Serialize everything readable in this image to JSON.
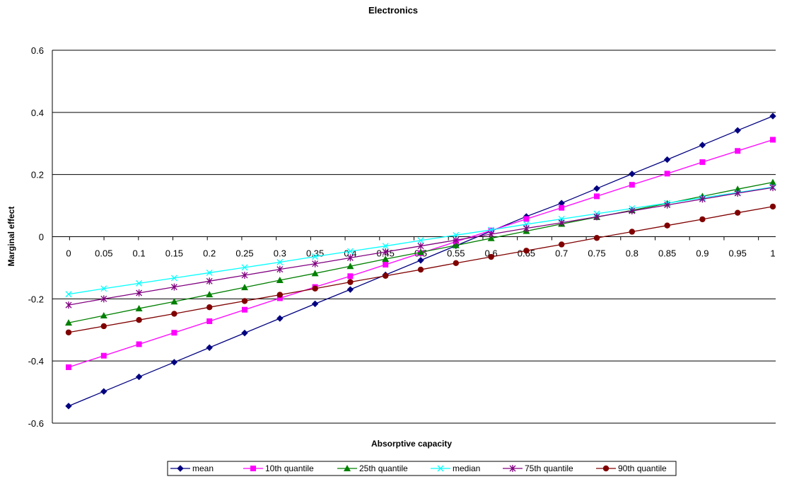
{
  "chart_data": {
    "type": "line",
    "title": "Electronics",
    "xlabel": "Absorptive capacity",
    "ylabel": "Marginal effect",
    "ylim": [
      -0.6,
      0.6
    ],
    "yticks": [
      -0.6,
      -0.4,
      -0.2,
      0,
      0.2,
      0.4,
      0.6
    ],
    "ytick_labels": [
      "-0.6",
      "-0.4",
      "-0.2",
      "0",
      "0.2",
      "0.4",
      "0.6"
    ],
    "grid": true,
    "legend_position": "bottom",
    "categories": [
      "0",
      "0.05",
      "0.1",
      "0.15",
      "0.2",
      "0.25",
      "0.3",
      "0.35",
      "0.4",
      "0.45",
      "0.5",
      "0.55",
      "0.6",
      "0.65",
      "0.7",
      "0.75",
      "0.8",
      "0.85",
      "0.9",
      "0.95",
      "1"
    ],
    "series": [
      {
        "name": "mean",
        "color": "#000080",
        "marker": "diamond",
        "values": [
          -0.545,
          -0.498,
          -0.451,
          -0.404,
          -0.357,
          -0.31,
          -0.263,
          -0.216,
          -0.17,
          -0.123,
          -0.076,
          -0.029,
          0.018,
          0.065,
          0.108,
          0.155,
          0.202,
          0.248,
          0.295,
          0.342,
          0.388
        ]
      },
      {
        "name": "10th quantile",
        "color": "#FF00FF",
        "marker": "square",
        "values": [
          -0.42,
          -0.383,
          -0.346,
          -0.309,
          -0.272,
          -0.235,
          -0.198,
          -0.162,
          -0.127,
          -0.09,
          -0.053,
          -0.016,
          0.02,
          0.057,
          0.093,
          0.13,
          0.167,
          0.203,
          0.24,
          0.276,
          0.312
        ]
      },
      {
        "name": "25th quantile",
        "color": "#008000",
        "marker": "triangle",
        "values": [
          -0.277,
          -0.254,
          -0.231,
          -0.209,
          -0.186,
          -0.163,
          -0.14,
          -0.118,
          -0.095,
          -0.072,
          -0.05,
          -0.028,
          -0.005,
          0.018,
          0.041,
          0.063,
          0.085,
          0.107,
          0.13,
          0.153,
          0.175
        ]
      },
      {
        "name": "median",
        "color": "#00FFFF",
        "marker": "x",
        "values": [
          -0.185,
          -0.167,
          -0.15,
          -0.133,
          -0.116,
          -0.099,
          -0.082,
          -0.064,
          -0.047,
          -0.03,
          -0.012,
          0.005,
          0.022,
          0.04,
          0.057,
          0.074,
          0.091,
          0.108,
          0.125,
          0.142,
          0.16
        ]
      },
      {
        "name": "75th quantile",
        "color": "#800080",
        "marker": "asterisk",
        "values": [
          -0.22,
          -0.2,
          -0.181,
          -0.162,
          -0.143,
          -0.124,
          -0.105,
          -0.087,
          -0.068,
          -0.049,
          -0.03,
          -0.011,
          0.008,
          0.027,
          0.045,
          0.064,
          0.083,
          0.102,
          0.121,
          0.14,
          0.158
        ]
      },
      {
        "name": "90th quantile",
        "color": "#800000",
        "marker": "circle",
        "values": [
          -0.308,
          -0.288,
          -0.268,
          -0.248,
          -0.227,
          -0.207,
          -0.187,
          -0.167,
          -0.146,
          -0.126,
          -0.106,
          -0.085,
          -0.065,
          -0.045,
          -0.025,
          -0.004,
          0.016,
          0.036,
          0.056,
          0.077,
          0.097
        ]
      }
    ]
  }
}
